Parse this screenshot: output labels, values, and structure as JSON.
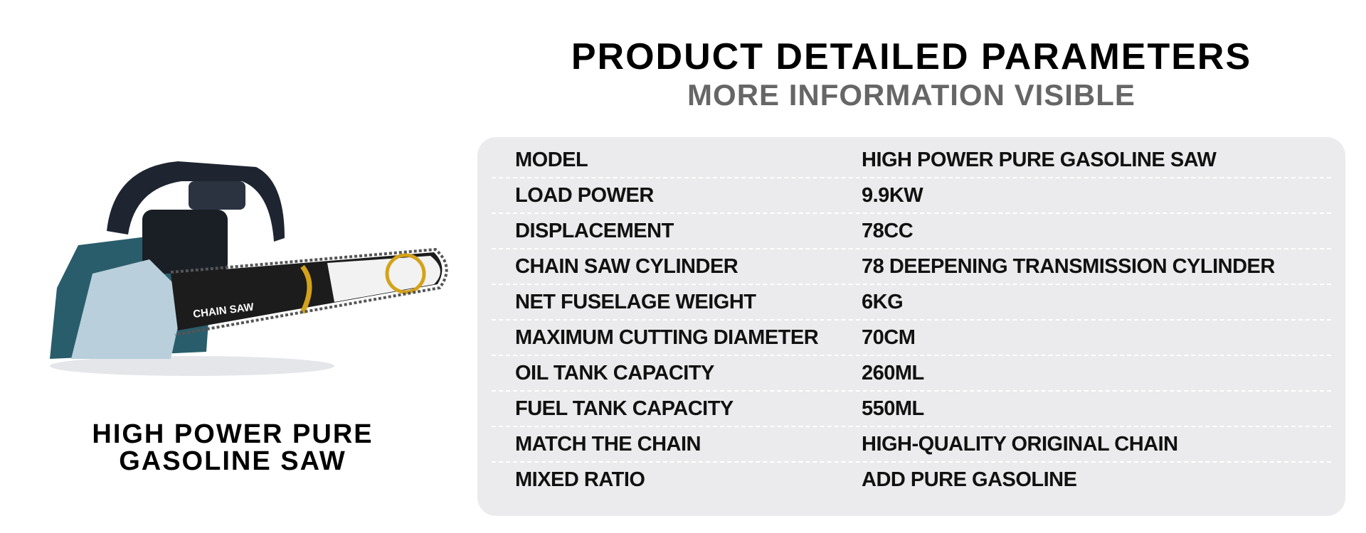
{
  "header": {
    "title": "PRODUCT DETAILED PARAMETERS",
    "subtitle": "MORE INFORMATION VISIBLE"
  },
  "product": {
    "caption": [
      "HIGH POWER PURE",
      "GASOLINE SAW"
    ],
    "bar_label": "CHAIN SAW"
  },
  "table": {
    "rows": [
      [
        "MODEL",
        "HIGH POWER PURE GASOLINE SAW"
      ],
      [
        "LOAD POWER",
        "9.9KW"
      ],
      [
        "DISPLACEMENT",
        "78CC"
      ],
      [
        "CHAIN SAW CYLINDER",
        "78 DEEPENING TRANSMISSION CYLINDER"
      ],
      [
        "NET FUSELAGE WEIGHT",
        "6KG"
      ],
      [
        "MAXIMUM CUTTING DIAMETER",
        "70CM"
      ],
      [
        "OIL TANK CAPACITY",
        "260ML"
      ],
      [
        "FUEL TANK CAPACITY",
        "550ML"
      ],
      [
        "MATCH THE CHAIN",
        "HIGH-QUALITY ORIGINAL CHAIN"
      ],
      [
        "MIXED RATIO",
        "ADD PURE GASOLINE"
      ]
    ]
  }
}
